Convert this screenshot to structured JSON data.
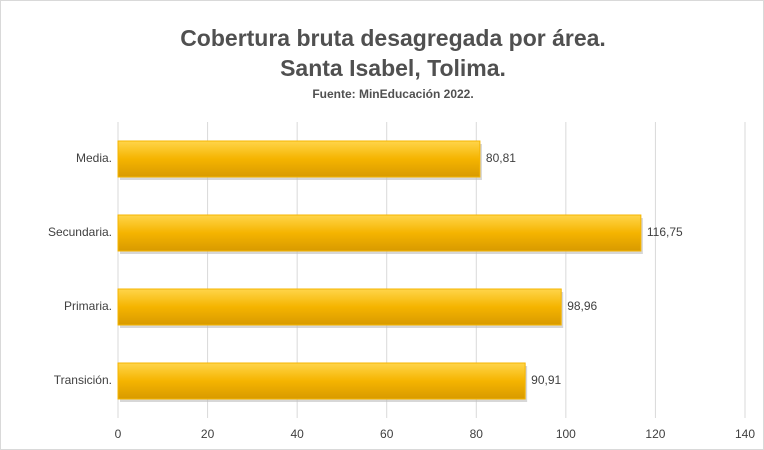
{
  "chart_data": {
    "type": "bar",
    "orientation": "horizontal",
    "title": [
      "Cobertura bruta desagregada por área.",
      "Santa Isabel, Tolima."
    ],
    "subtitle": "Fuente: MinEducación 2022.",
    "categories": [
      "Media.",
      "Secundaria.",
      "Primaria.",
      "Transición."
    ],
    "values": [
      80.81,
      116.75,
      98.96,
      90.91
    ],
    "value_labels": [
      "80,81",
      "116,75",
      "98,96",
      "90,91"
    ],
    "color": "#f5b400",
    "xlim": [
      0,
      140
    ],
    "xticks": [
      0,
      20,
      40,
      60,
      80,
      100,
      120,
      140
    ],
    "grid": true
  }
}
